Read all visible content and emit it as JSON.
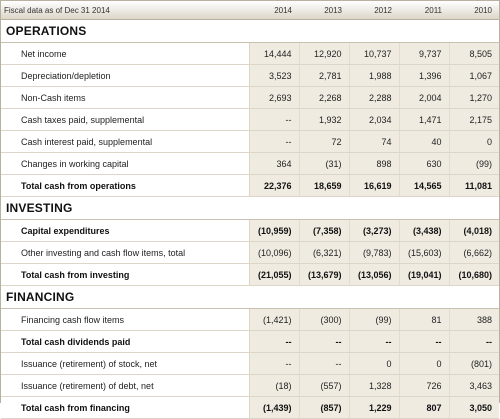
{
  "header": {
    "label": "Fiscal data as of Dec 31 2014",
    "years": [
      "2014",
      "2013",
      "2012",
      "2011",
      "2010"
    ]
  },
  "sections": [
    {
      "title": "OPERATIONS",
      "rows": [
        {
          "label": "Net income",
          "bold": false,
          "values": [
            "14,444",
            "12,920",
            "10,737",
            "9,737",
            "8,505"
          ]
        },
        {
          "label": "Depreciation/depletion",
          "bold": false,
          "values": [
            "3,523",
            "2,781",
            "1,988",
            "1,396",
            "1,067"
          ]
        },
        {
          "label": "Non-Cash items",
          "bold": false,
          "values": [
            "2,693",
            "2,268",
            "2,288",
            "2,004",
            "1,270"
          ]
        },
        {
          "label": "Cash taxes paid, supplemental",
          "bold": false,
          "values": [
            "--",
            "1,932",
            "2,034",
            "1,471",
            "2,175"
          ]
        },
        {
          "label": "Cash interest paid, supplemental",
          "bold": false,
          "values": [
            "--",
            "72",
            "74",
            "40",
            "0"
          ]
        },
        {
          "label": "Changes in working capital",
          "bold": false,
          "values": [
            "364",
            "(31)",
            "898",
            "630",
            "(99)"
          ]
        },
        {
          "label": "Total cash from operations",
          "bold": true,
          "values": [
            "22,376",
            "18,659",
            "16,619",
            "14,565",
            "11,081"
          ]
        }
      ]
    },
    {
      "title": "INVESTING",
      "rows": [
        {
          "label": "Capital expenditures",
          "bold": true,
          "values": [
            "(10,959)",
            "(7,358)",
            "(3,273)",
            "(3,438)",
            "(4,018)"
          ]
        },
        {
          "label": "Other investing and cash flow items, total",
          "bold": false,
          "values": [
            "(10,096)",
            "(6,321)",
            "(9,783)",
            "(15,603)",
            "(6,662)"
          ]
        },
        {
          "label": "Total cash from investing",
          "bold": true,
          "values": [
            "(21,055)",
            "(13,679)",
            "(13,056)",
            "(19,041)",
            "(10,680)"
          ]
        }
      ]
    },
    {
      "title": "FINANCING",
      "rows": [
        {
          "label": "Financing cash flow items",
          "bold": false,
          "values": [
            "(1,421)",
            "(300)",
            "(99)",
            "81",
            "388"
          ]
        },
        {
          "label": "Total cash dividends paid",
          "bold": true,
          "values": [
            "--",
            "--",
            "--",
            "--",
            "--"
          ]
        },
        {
          "label": "Issuance (retirement) of stock, net",
          "bold": false,
          "values": [
            "--",
            "--",
            "0",
            "0",
            "(801)"
          ]
        },
        {
          "label": "Issuance (retirement) of debt, net",
          "bold": false,
          "values": [
            "(18)",
            "(557)",
            "1,328",
            "726",
            "3,463"
          ]
        },
        {
          "label": "Total cash from financing",
          "bold": true,
          "values": [
            "(1,439)",
            "(857)",
            "1,229",
            "807",
            "3,050"
          ]
        }
      ]
    }
  ]
}
